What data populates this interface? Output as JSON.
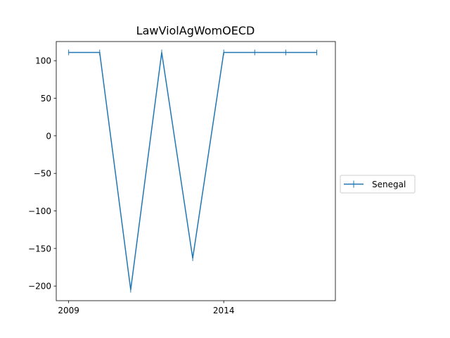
{
  "chart_data": {
    "type": "line",
    "title": "LawViolAgWomOECD",
    "xlabel": "",
    "ylabel": "",
    "xlim": [
      2008.6,
      2017.6
    ],
    "ylim": [
      -219.5,
      125.5
    ],
    "x_ticks": [
      2009,
      2014
    ],
    "y_ticks": [
      100,
      50,
      0,
      -50,
      -100,
      -150,
      -200
    ],
    "y_tick_labels": [
      "100",
      "50",
      "0",
      "−50",
      "−100",
      "−150",
      "−200"
    ],
    "grid": false,
    "legend_position": "right-center",
    "series": [
      {
        "name": "Senegal",
        "color": "#1f77b4",
        "marker": "vertical-line",
        "x": [
          2009,
          2010,
          2011,
          2012,
          2013,
          2014,
          2015,
          2016,
          2017
        ],
        "values": [
          111,
          111,
          -205,
          111,
          -163,
          111,
          111,
          111,
          111
        ]
      }
    ]
  }
}
